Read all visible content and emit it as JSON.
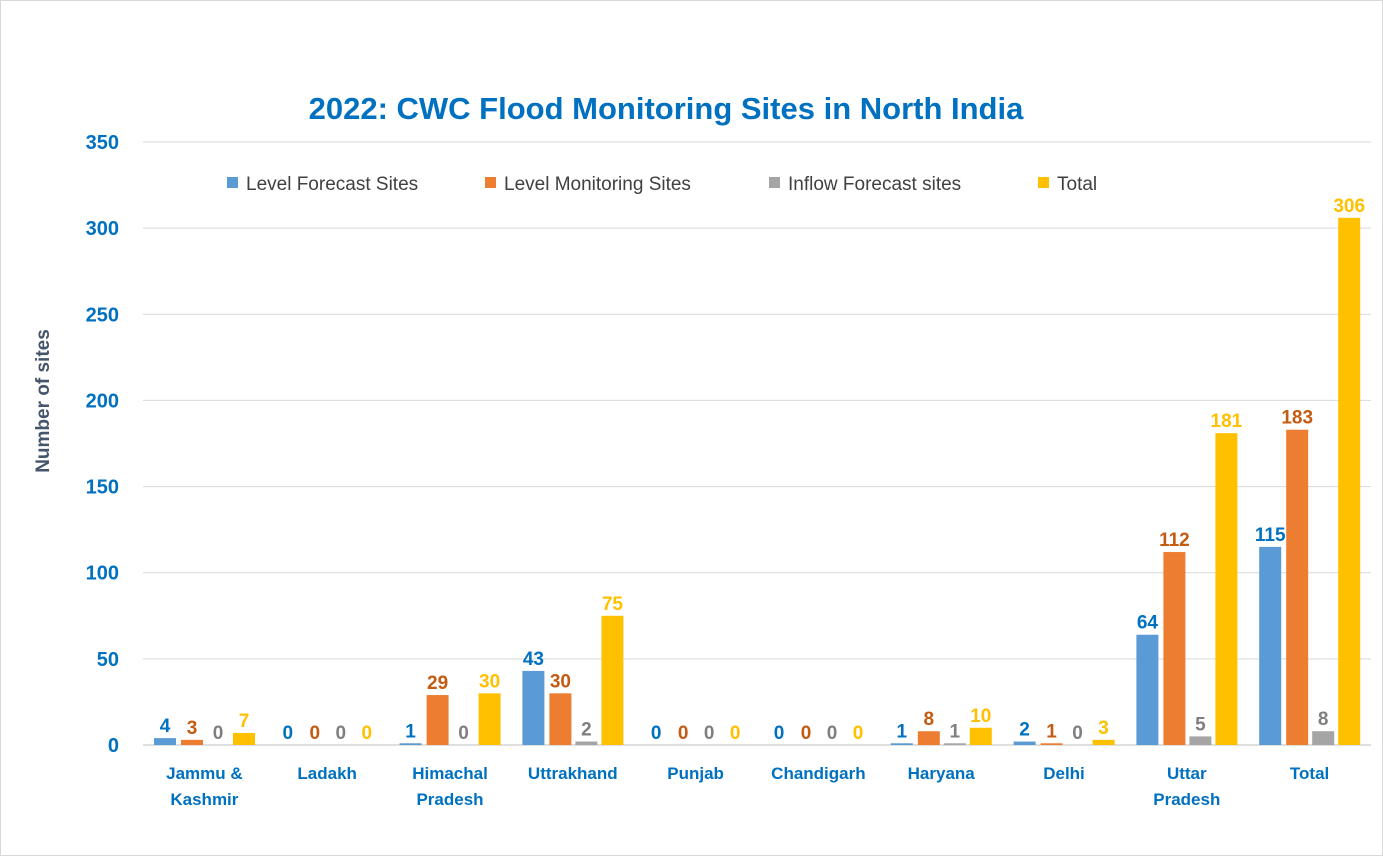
{
  "chart_data": {
    "type": "bar",
    "title": "2022: CWC Flood Monitoring Sites in North India",
    "xlabel": "",
    "ylabel": "Number of sites",
    "ylim": [
      0,
      350
    ],
    "yticks": [
      0,
      50,
      100,
      150,
      200,
      250,
      300,
      350
    ],
    "grid": true,
    "legend_placement": "top",
    "categories": [
      [
        "Jammu &",
        "Kashmir"
      ],
      [
        "Ladakh"
      ],
      [
        "Himachal",
        "Pradesh"
      ],
      [
        "Uttrakhand"
      ],
      [
        "Punjab"
      ],
      [
        "Chandigarh"
      ],
      [
        "Haryana"
      ],
      [
        "Delhi"
      ],
      [
        "Uttar",
        "Pradesh"
      ],
      [
        "Total"
      ]
    ],
    "series": [
      {
        "name": "Level Forecast Sites",
        "color": "#5b9bd5",
        "label_color": "#0070c0",
        "values": [
          4,
          0,
          1,
          43,
          0,
          0,
          1,
          2,
          64,
          115
        ]
      },
      {
        "name": "Level Monitoring Sites",
        "color": "#ed7d31",
        "label_color": "#c55a11",
        "values": [
          3,
          0,
          29,
          30,
          0,
          0,
          8,
          1,
          112,
          183
        ]
      },
      {
        "name": "Inflow Forecast sites",
        "color": "#a5a5a5",
        "label_color": "#7f7f7f",
        "values": [
          0,
          0,
          0,
          2,
          0,
          0,
          1,
          0,
          5,
          8
        ]
      },
      {
        "name": "Total",
        "color": "#ffc000",
        "label_color": "#ffc000",
        "values": [
          7,
          0,
          30,
          75,
          0,
          0,
          10,
          3,
          181,
          306
        ]
      }
    ],
    "colors": {
      "title": "#0070c0",
      "ticks": "#0070c0",
      "ylabel": "#44546a",
      "grid": "#d9d9d9"
    }
  }
}
